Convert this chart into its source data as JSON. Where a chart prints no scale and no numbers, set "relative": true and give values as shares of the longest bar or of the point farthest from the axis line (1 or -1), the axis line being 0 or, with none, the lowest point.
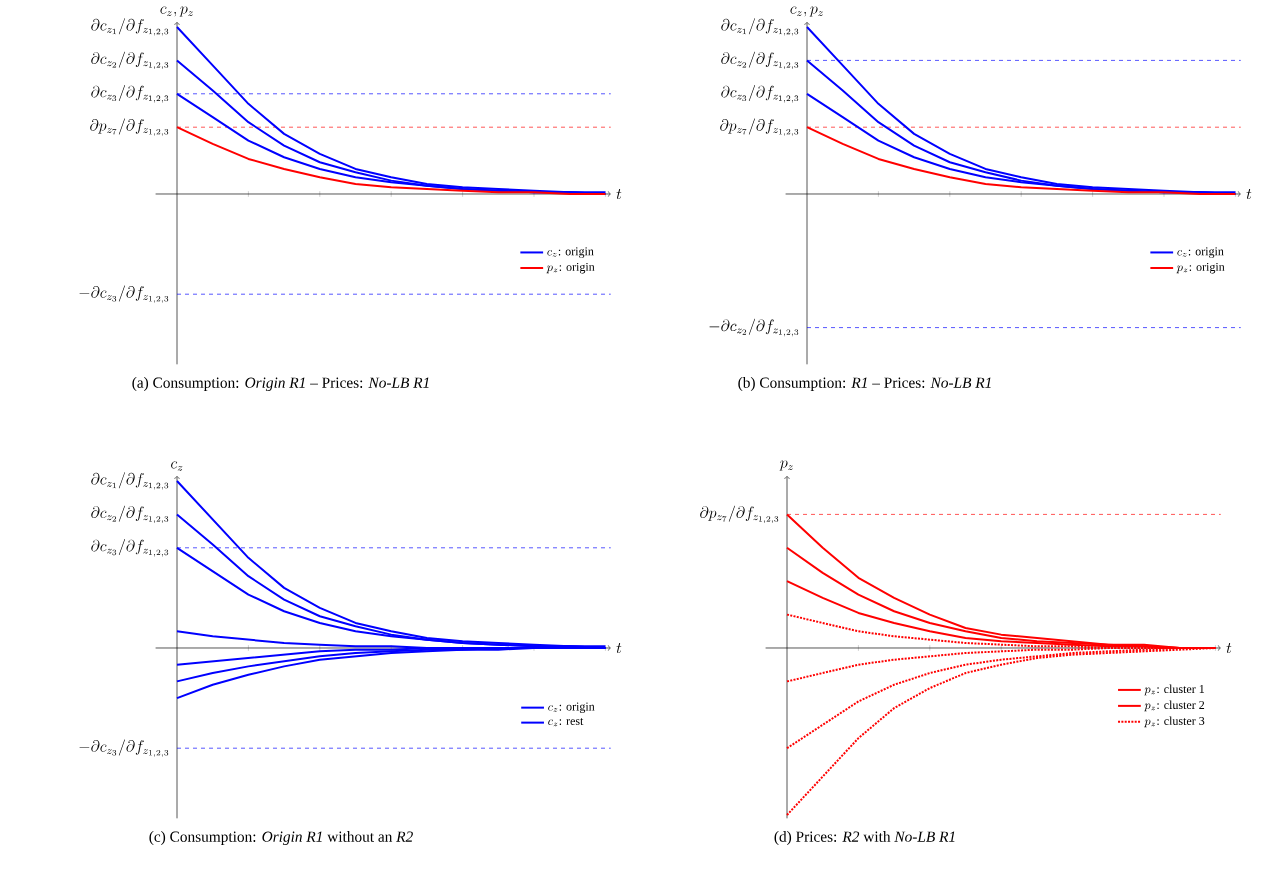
{
  "chart_data": [
    {
      "type": "line",
      "relative": true,
      "xlabel": "t",
      "ylabel": "c_z, p_z",
      "legend": "bottom right",
      "title": "(a) Consumption: *Origin R1* – Prices: *No-LB R1*",
      "categories": [
        null,
        null,
        null,
        null,
        null,
        null,
        null,
        null,
        null,
        null,
        null,
        null,
        null
      ],
      "series": [
        {
          "name": "c_z\\mbox{: origin}",
          "color": "#0000ff",
          "values": [
            1.0,
            0.77,
            0.54,
            0.36,
            0.24,
            0.15,
            0.1,
            0.06,
            0.04,
            0.03,
            0.02,
            0.01,
            0.01
          ]
        },
        {
          "color": "#0000ff",
          "values": [
            0.8,
            0.62,
            0.43,
            0.29,
            0.19,
            0.13,
            0.08,
            0.05,
            0.03,
            0.02,
            0.01,
            0.01,
            0
          ]
        },
        {
          "color": "#0000ff",
          "values": [
            0.6,
            0.46,
            0.32,
            0.22,
            0.15,
            0.1,
            0.07,
            0.05,
            0.03,
            0.02,
            0.01,
            0.01,
            0
          ]
        },
        {
          "name": "p_z\\mbox{: origin}",
          "color": "#ff0000",
          "values": [
            0.4,
            0.3,
            0.21,
            0.15,
            0.1,
            0.06,
            0.04,
            0.03,
            0.02,
            0.01,
            0.01,
            0,
            0
          ]
        }
      ],
      "ref_lines": [
        {
          "axis": "y",
          "value": 0.6,
          "label": "\\partial c_{z_3}/\\partial f_{z_{1,2,3}}",
          "color": "#0000ff",
          "line_style": "dashed"
        },
        {
          "axis": "y",
          "value": 0.4,
          "label": "\\partial p_{z_7}/\\partial f_{z_{1,2,3}}",
          "color": "#ff0000",
          "line_style": "dashed"
        },
        {
          "axis": "y",
          "value": -0.6,
          "label": "-\\partial c_{z_3}/\\partial f_{z_{1,2,3}}",
          "color": "#0000ff",
          "line_style": "dashed"
        }
      ],
      "annotations": [
        "\\partial c_{z_1}/\\partial f_{z_{1,2,3}}",
        "\\partial c_{z_2}/\\partial f_{z_{1,2,3}}"
      ]
    },
    {
      "type": "line",
      "relative": true,
      "xlabel": "t",
      "ylabel": "c_z, p_z",
      "legend": "bottom right",
      "title": "(b) Consumption: *R1* – Prices: *No-LB R1*",
      "categories": [
        null,
        null,
        null,
        null,
        null,
        null,
        null,
        null,
        null,
        null,
        null,
        null,
        null
      ],
      "series": [
        {
          "name": "c_z\\mbox{: origin}",
          "color": "#0000ff",
          "values": [
            1.0,
            0.77,
            0.54,
            0.36,
            0.24,
            0.15,
            0.1,
            0.06,
            0.04,
            0.03,
            0.02,
            0.01,
            0.01
          ]
        },
        {
          "color": "#0000ff",
          "values": [
            0.8,
            0.62,
            0.43,
            0.29,
            0.19,
            0.13,
            0.08,
            0.05,
            0.03,
            0.02,
            0.01,
            0.01,
            0
          ]
        },
        {
          "color": "#0000ff",
          "values": [
            0.6,
            0.46,
            0.32,
            0.22,
            0.15,
            0.1,
            0.07,
            0.05,
            0.03,
            0.02,
            0.01,
            0.01,
            0
          ]
        },
        {
          "name": "p_z\\mbox{: origin}",
          "color": "#ff0000",
          "values": [
            0.4,
            0.3,
            0.21,
            0.15,
            0.1,
            0.06,
            0.04,
            0.03,
            0.02,
            0.01,
            0.01,
            0,
            0
          ]
        }
      ],
      "ref_lines": [
        {
          "axis": "y",
          "value": 0.8,
          "label": "\\partial c_{z_2}/\\partial f_{z_{1,2,3}}",
          "color": "#0000ff",
          "line_style": "dashed"
        },
        {
          "axis": "y",
          "value": 0.4,
          "label": "\\partial p_{z_7}/\\partial f_{z_{1,2,3}}",
          "color": "#ff0000",
          "line_style": "dashed"
        },
        {
          "axis": "y",
          "value": -0.8,
          "label": "-\\partial c_{z_2}/\\partial f_{z_{1,2,3}}",
          "color": "#0000ff",
          "line_style": "dashed"
        }
      ],
      "annotations": [
        "\\partial c_{z_1}/\\partial f_{z_{1,2,3}}",
        "\\partial c_{z_3}/\\partial f_{z_{1,2,3}}"
      ]
    },
    {
      "type": "line",
      "relative": true,
      "xlabel": "t",
      "ylabel": "c_z",
      "legend": "bottom right",
      "title": "(c) Consumption: *Origin R1* without an *R2*",
      "categories": [
        null,
        null,
        null,
        null,
        null,
        null,
        null,
        null,
        null,
        null,
        null,
        null,
        null
      ],
      "series": [
        {
          "name": "c_z\\mbox{: origin}",
          "color": "#0000ff",
          "values": [
            1.0,
            0.77,
            0.54,
            0.36,
            0.24,
            0.15,
            0.1,
            0.06,
            0.04,
            0.03,
            0.02,
            0.01,
            0.01
          ]
        },
        {
          "color": "#0000ff",
          "values": [
            0.8,
            0.62,
            0.43,
            0.29,
            0.19,
            0.13,
            0.08,
            0.05,
            0.03,
            0.02,
            0.01,
            0.01,
            0
          ]
        },
        {
          "color": "#0000ff",
          "values": [
            0.6,
            0.46,
            0.32,
            0.22,
            0.15,
            0.1,
            0.07,
            0.05,
            0.03,
            0.02,
            0.01,
            0.01,
            0
          ]
        },
        {
          "name": "c_z\\mbox{: rest}",
          "color": "#0000ff",
          "values": [
            0.1,
            0.07,
            0.05,
            0.03,
            0.02,
            0.01,
            0.01,
            0,
            0,
            0,
            0,
            0,
            0
          ]
        },
        {
          "color": "#0000ff",
          "values": [
            -0.1,
            -0.08,
            -0.06,
            -0.04,
            -0.02,
            -0.01,
            -0.01,
            0,
            0,
            0,
            0,
            0,
            0
          ]
        },
        {
          "color": "#0000ff",
          "values": [
            -0.2,
            -0.15,
            -0.11,
            -0.08,
            -0.05,
            -0.03,
            -0.02,
            -0.01,
            -0.01,
            0,
            0,
            0,
            0
          ]
        },
        {
          "color": "#0000ff",
          "values": [
            -0.3,
            -0.22,
            -0.16,
            -0.11,
            -0.07,
            -0.05,
            -0.03,
            -0.02,
            -0.01,
            -0.01,
            0,
            0,
            0
          ]
        }
      ],
      "ref_lines": [
        {
          "axis": "y",
          "value": 0.6,
          "label": "\\partial c_{z_3}/\\partial f_{z_{1,2,3}}",
          "color": "#0000ff",
          "line_style": "dashed"
        },
        {
          "axis": "y",
          "value": -0.6,
          "label": "-\\partial c_{z_3}/\\partial f_{z_{1,2,3}}",
          "color": "#0000ff",
          "line_style": "dashed"
        }
      ],
      "annotations": [
        "\\partial c_{z_1}/\\partial f_{z_{1,2,3}}",
        "\\partial c_{z_2}/\\partial f_{z_{1,2,3}}"
      ]
    },
    {
      "type": "line",
      "relative": true,
      "xlabel": "t",
      "ylabel": "p_z",
      "legend": "bottom right",
      "title": "(d) Prices: *R2* with *No-LB R1*",
      "categories": [
        null,
        null,
        null,
        null,
        null,
        null,
        null,
        null,
        null,
        null,
        null,
        null,
        null
      ],
      "series": [
        {
          "name": "p_z\\mbox{: cluster 1}",
          "color": "#ff0000",
          "values": [
            0.8,
            0.6,
            0.42,
            0.3,
            0.2,
            0.12,
            0.08,
            0.06,
            0.04,
            0.02,
            0.02,
            0,
            0
          ]
        },
        {
          "name": "p_z\\mbox{: cluster 2}",
          "color": "#ff0000",
          "values": [
            0.6,
            0.45,
            0.32,
            0.22,
            0.15,
            0.1,
            0.06,
            0.04,
            0.03,
            0.02,
            0.01,
            0,
            0
          ]
        },
        {
          "color": "#ff0000",
          "values": [
            0.4,
            0.3,
            0.21,
            0.15,
            0.1,
            0.06,
            0.04,
            0.03,
            0.02,
            0.01,
            0.01,
            0,
            0
          ]
        },
        {
          "name": "p_z\\mbox{: cluster 3}",
          "color": "#ff0000",
          "line_style": "dotted",
          "values": [
            0.2,
            0.15,
            0.1,
            0.07,
            0.05,
            0.03,
            0.02,
            0.01,
            0.01,
            0,
            0,
            0,
            0
          ]
        },
        {
          "color": "#ff0000",
          "line_style": "dotted",
          "values": [
            -0.2,
            -0.15,
            -0.1,
            -0.07,
            -0.05,
            -0.03,
            -0.02,
            -0.01,
            -0.01,
            0,
            0,
            0,
            0
          ]
        },
        {
          "color": "#ff0000",
          "line_style": "dotted",
          "values": [
            -0.6,
            -0.46,
            -0.32,
            -0.22,
            -0.15,
            -0.1,
            -0.07,
            -0.05,
            -0.03,
            -0.02,
            -0.01,
            0,
            0
          ]
        },
        {
          "color": "#ff0000",
          "line_style": "dotted",
          "values": [
            -1.0,
            -0.77,
            -0.54,
            -0.36,
            -0.24,
            -0.15,
            -0.1,
            -0.06,
            -0.04,
            -0.03,
            -0.02,
            -0.01,
            0
          ]
        }
      ],
      "ref_lines": [
        {
          "axis": "y",
          "value": 0.8,
          "label": "\\partial p_{z_7}/\\partial f_{z_{1,2,3}}",
          "color": "#ff0000",
          "line_style": "dashed"
        }
      ]
    }
  ]
}
